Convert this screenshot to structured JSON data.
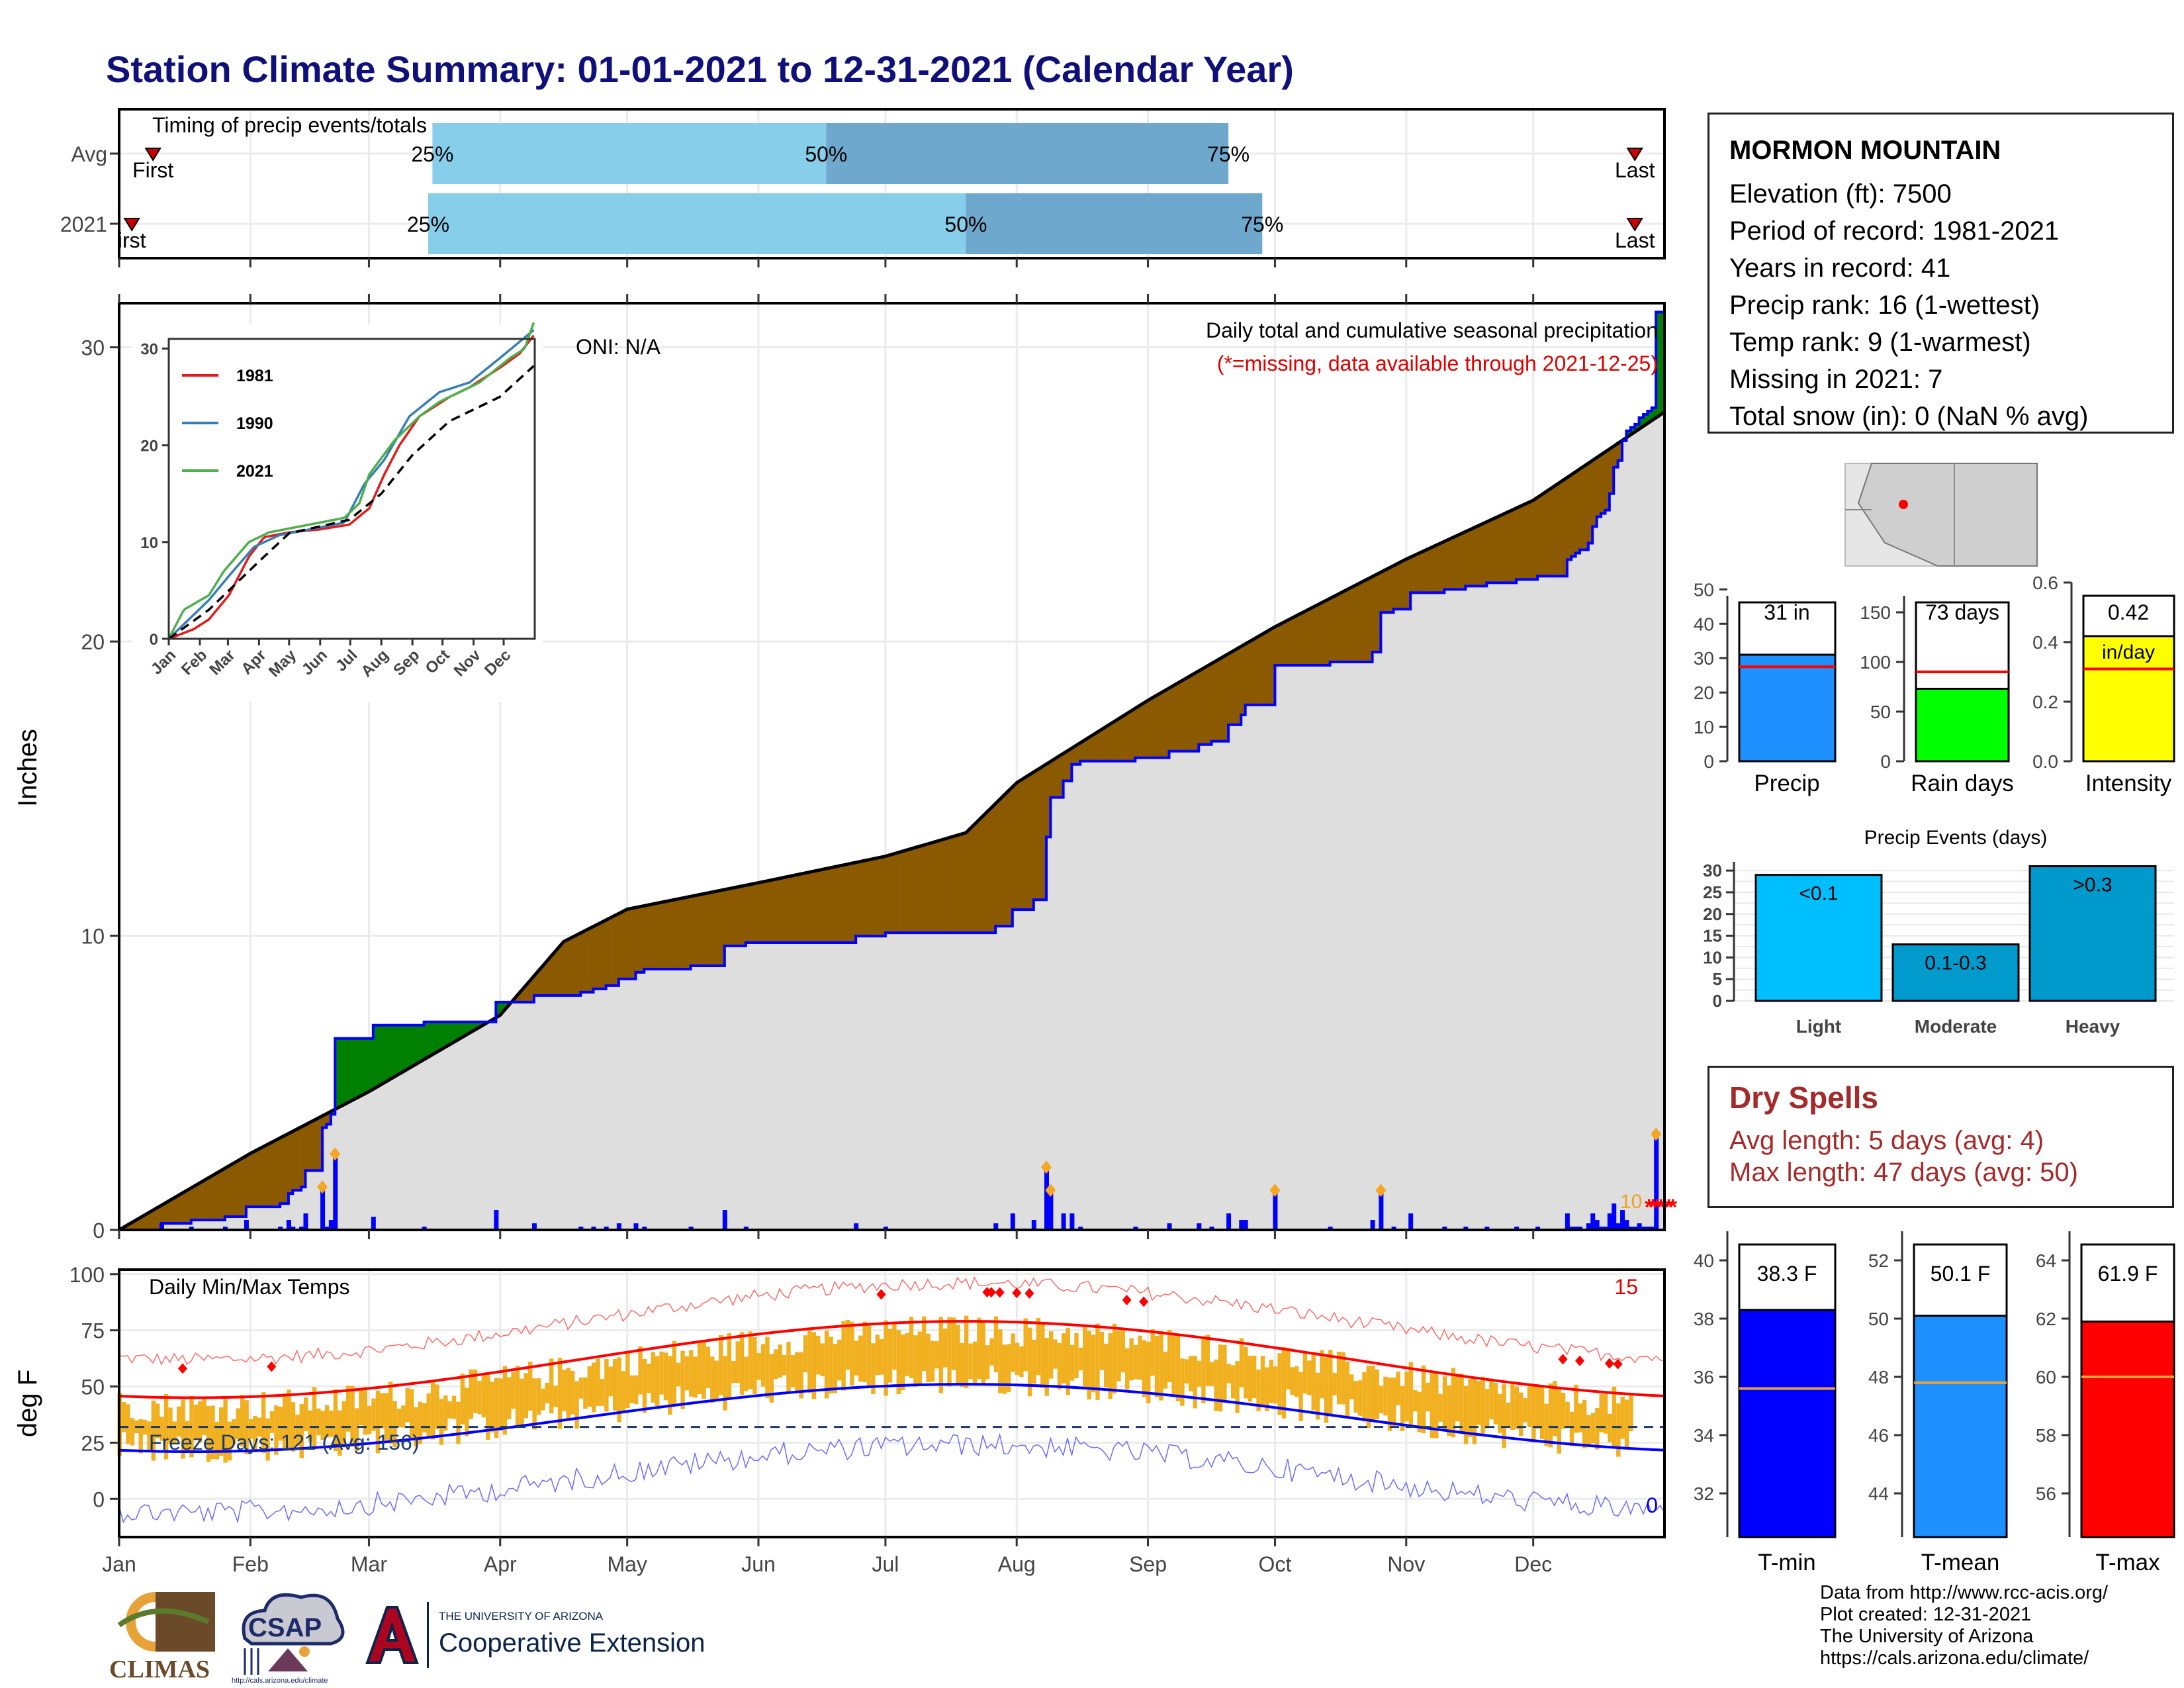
{
  "title": "Station Climate Summary: 01-01-2021 to 12-31-2021 (Calendar Year)",
  "colors": {
    "title": "#10107a",
    "above_normal": "#008000",
    "below_normal": "#8b5a00",
    "normal_fill": "#dedede",
    "observed_line": "#0000ff",
    "daily_bars": "#0000ff",
    "temp_range": "#f0b020",
    "tmax_normal": "#ff0000",
    "tmin_normal": "#0000ff",
    "missing": "#ff0000",
    "timing_light": "#87ceeb",
    "timing_dark": "#6fa8cd",
    "dry_spells": "#a52a2a"
  },
  "timing": {
    "label": "Timing of precip events/totals",
    "rows": [
      {
        "name": "Avg",
        "first_label": "First",
        "last_label": "Last",
        "p25_label": "25%",
        "p50_label": "50%",
        "p75_label": "75%",
        "first_day": 8,
        "p25_day": 74,
        "p50_day": 167,
        "p75_day": 262,
        "last_day": 358
      },
      {
        "name": "2021",
        "first_label": "irst",
        "last_label": "Last",
        "p25_label": "25%",
        "p50_label": "50%",
        "p75_label": "75%",
        "first_day": 3,
        "p25_day": 73,
        "p50_day": 200,
        "p75_day": 270,
        "last_day": 358
      }
    ]
  },
  "station": {
    "name": "MORMON MOUNTAIN",
    "lines": [
      "Elevation (ft): 7500",
      "Period of record: 1981-2021",
      "Years in record: 41",
      "Precip rank: 16 (1-wettest)",
      "Temp rank: 9 (1-warmest)",
      "Missing in 2021: 7",
      "Total snow (in): 0 (NaN % avg)"
    ]
  },
  "precip_panel": {
    "annotation_title": "Daily total and cumulative seasonal precipitation",
    "annotation_missing": "(*=missing, data available through 2021-12-25)",
    "oni": "ONI: N/A",
    "ylabel": "Inches",
    "yticks": [
      0,
      10,
      20,
      30
    ],
    "ymax": 31.5,
    "missing_count_label": "10",
    "missing_marker": "*"
  },
  "inset": {
    "yticks": [
      0,
      10,
      20,
      30
    ],
    "xticks": [
      "Jan",
      "Feb",
      "Mar",
      "Apr",
      "May",
      "Jun",
      "Jul",
      "Aug",
      "Sep",
      "Oct",
      "Nov",
      "Dec"
    ],
    "legend": [
      {
        "name": "1981",
        "color": "#e41a1c"
      },
      {
        "name": "1990",
        "color": "#377eb8"
      },
      {
        "name": "2021",
        "color": "#4daf4a"
      }
    ]
  },
  "temp_panel": {
    "title": "Daily Min/Max Temps",
    "ylabel": "deg F",
    "yticks": [
      0,
      25,
      50,
      75,
      100
    ],
    "freeze_label": "Freeze Days: 121 (Avg: 156)",
    "record_high_count": "15",
    "record_low_count": "0",
    "freeze_line": 32
  },
  "months": [
    "Jan",
    "Feb",
    "Mar",
    "Apr",
    "May",
    "Jun",
    "Jul",
    "Aug",
    "Sep",
    "Oct",
    "Nov",
    "Dec"
  ],
  "bar_charts": {
    "precip": {
      "label": "Precip",
      "value_label": "31 in",
      "value": 31,
      "avg": 27.5,
      "yticks": [
        0,
        10,
        20,
        30,
        40,
        50
      ],
      "ymax": 52,
      "color": "#1e90ff"
    },
    "rain_days": {
      "label": "Rain days",
      "value_label": "73 days",
      "value": 73,
      "avg": 90,
      "yticks": [
        0,
        50,
        100,
        150
      ],
      "ymax": 180,
      "color": "#00ff00"
    },
    "intensity": {
      "label": "Intensity",
      "value_label": "0.42",
      "value_unit": "in/day",
      "value": 0.42,
      "avg": 0.31,
      "yticks": [
        0.0,
        0.2,
        0.4,
        0.6
      ],
      "ymax": 0.6,
      "color": "#ffff00"
    }
  },
  "events": {
    "title": "Precip Events (days)",
    "yticks": [
      0,
      5,
      10,
      15,
      20,
      25,
      30
    ],
    "ymax": 32,
    "bars": [
      {
        "name": "Light",
        "label": "<0.1",
        "value": 29,
        "color": "#00bfff"
      },
      {
        "name": "Moderate",
        "label": "0.1-0.3",
        "value": 13,
        "color": "#009acd"
      },
      {
        "name": "Heavy",
        "label": ">0.3",
        "value": 31,
        "color": "#0099cc"
      }
    ]
  },
  "dry_spells": {
    "title": "Dry Spells",
    "avg_length": "Avg length: 5 days (avg: 4)",
    "max_length": "Max length: 47 days (avg: 50)"
  },
  "temp_bars": {
    "tmin": {
      "label": "T-min",
      "value_label": "38.3 F",
      "value": 38.3,
      "avg": 35.6,
      "yticks": [
        32,
        34,
        36,
        38,
        40
      ],
      "ymin": 30.5,
      "ymax": 41,
      "color": "#0000ff"
    },
    "tmean": {
      "label": "T-mean",
      "value_label": "50.1 F",
      "value": 50.1,
      "avg": 47.8,
      "yticks": [
        44,
        46,
        48,
        50,
        52
      ],
      "ymin": 42.5,
      "ymax": 53,
      "color": "#1e90ff"
    },
    "tmax": {
      "label": "T-max",
      "value_label": "61.9 F",
      "value": 61.9,
      "avg": 60.0,
      "yticks": [
        56,
        58,
        60,
        62,
        64
      ],
      "ymin": 54.5,
      "ymax": 65,
      "color": "#ff0000"
    }
  },
  "credits": [
    "Data from http://www.rcc-acis.org/",
    "Plot created: 12-31-2021",
    "The University of Arizona",
    "https://cals.arizona.edu/climate/"
  ],
  "logos": {
    "climas": "CLIMAS",
    "csap": "CSAP",
    "csap_url": "http://cals.arizona.edu/climate",
    "ua_small": "THE UNIVERSITY OF ARIZONA",
    "ua_big": "Cooperative Extension"
  }
}
